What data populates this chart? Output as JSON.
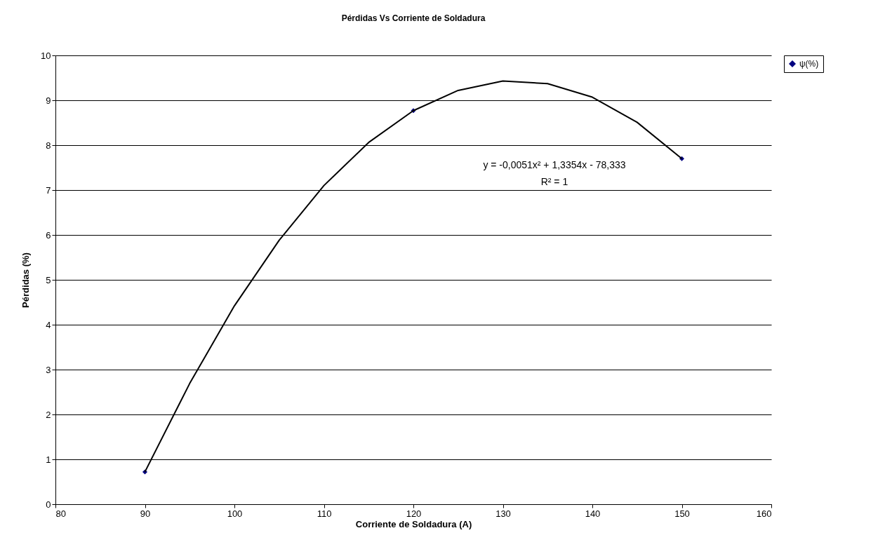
{
  "chart_data": {
    "type": "scatter",
    "title": "Pérdidas Vs Corriente de Soldadura",
    "xlabel": "Corriente de Soldadura (A)",
    "ylabel": "Pérdidas (%)",
    "series": [
      {
        "name": "ψ(%)",
        "marker": "diamond",
        "color": "#000080",
        "x": [
          90,
          120,
          150
        ],
        "values": [
          0.72,
          8.77,
          7.7
        ]
      },
      {
        "type": "line",
        "marker": "none",
        "color": "#000000",
        "x": [
          90,
          95,
          100,
          105,
          110,
          115,
          120,
          125,
          130,
          135,
          140,
          145,
          150
        ],
        "values": [
          0.72,
          2.69,
          4.42,
          5.88,
          7.1,
          8.06,
          8.77,
          9.22,
          9.43,
          9.37,
          9.07,
          8.51,
          7.7
        ]
      }
    ],
    "annotations": [
      "y = -0,0051x² + 1,3354x - 78,333",
      "R² = 1"
    ],
    "xlim": [
      80,
      160
    ],
    "xticks": [
      80,
      90,
      100,
      110,
      120,
      130,
      140,
      150,
      160
    ],
    "ylim": [
      0,
      10
    ],
    "yticks": [
      0,
      1,
      2,
      3,
      4,
      5,
      6,
      7,
      8,
      9,
      10
    ],
    "grid": "y",
    "legend": "right"
  }
}
